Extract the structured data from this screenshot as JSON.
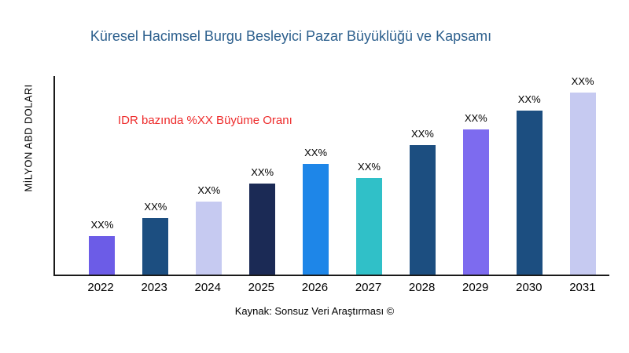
{
  "title": "Küresel Hacimsel Burgu Besleyici Pazar Büyüklüğü ve Kapsamı",
  "annotation": "IDR bazında %XX Büyüme Oranı",
  "y_axis_label": "MİLYON ABD DOLARI",
  "source": "Kaynak: Sonsuz Veri Araştırması ©",
  "colors": {
    "title": "#2C5F8D",
    "annotation": "#EE2B2B",
    "axis": "#1a1a1a"
  },
  "chart_data": {
    "type": "bar",
    "title": "Küresel Hacimsel Burgu Besleyici Pazar Büyüklüğü ve Kapsamı",
    "xlabel": "",
    "ylabel": "MİLYON ABD DOLARI",
    "categories": [
      "2022",
      "2023",
      "2024",
      "2025",
      "2026",
      "2027",
      "2028",
      "2029",
      "2030",
      "2031"
    ],
    "values": [
      21,
      31,
      40,
      50,
      61,
      53,
      71,
      80,
      90,
      100
    ],
    "value_labels": [
      "XX%",
      "XX%",
      "XX%",
      "XX%",
      "XX%",
      "XX%",
      "XX%",
      "XX%",
      "XX%",
      "XX%"
    ],
    "bar_colors": [
      "#6C5CE7",
      "#1C4E80",
      "#C6CAF1",
      "#1B2A55",
      "#1E86E8",
      "#30C0C8",
      "#1C4E80",
      "#7D6BEF",
      "#1C4E80",
      "#C6CAF1"
    ],
    "ylim": [
      0,
      110
    ],
    "grid": false,
    "legend": false,
    "annotations": [
      "IDR bazında %XX Büyüme Oranı"
    ]
  }
}
